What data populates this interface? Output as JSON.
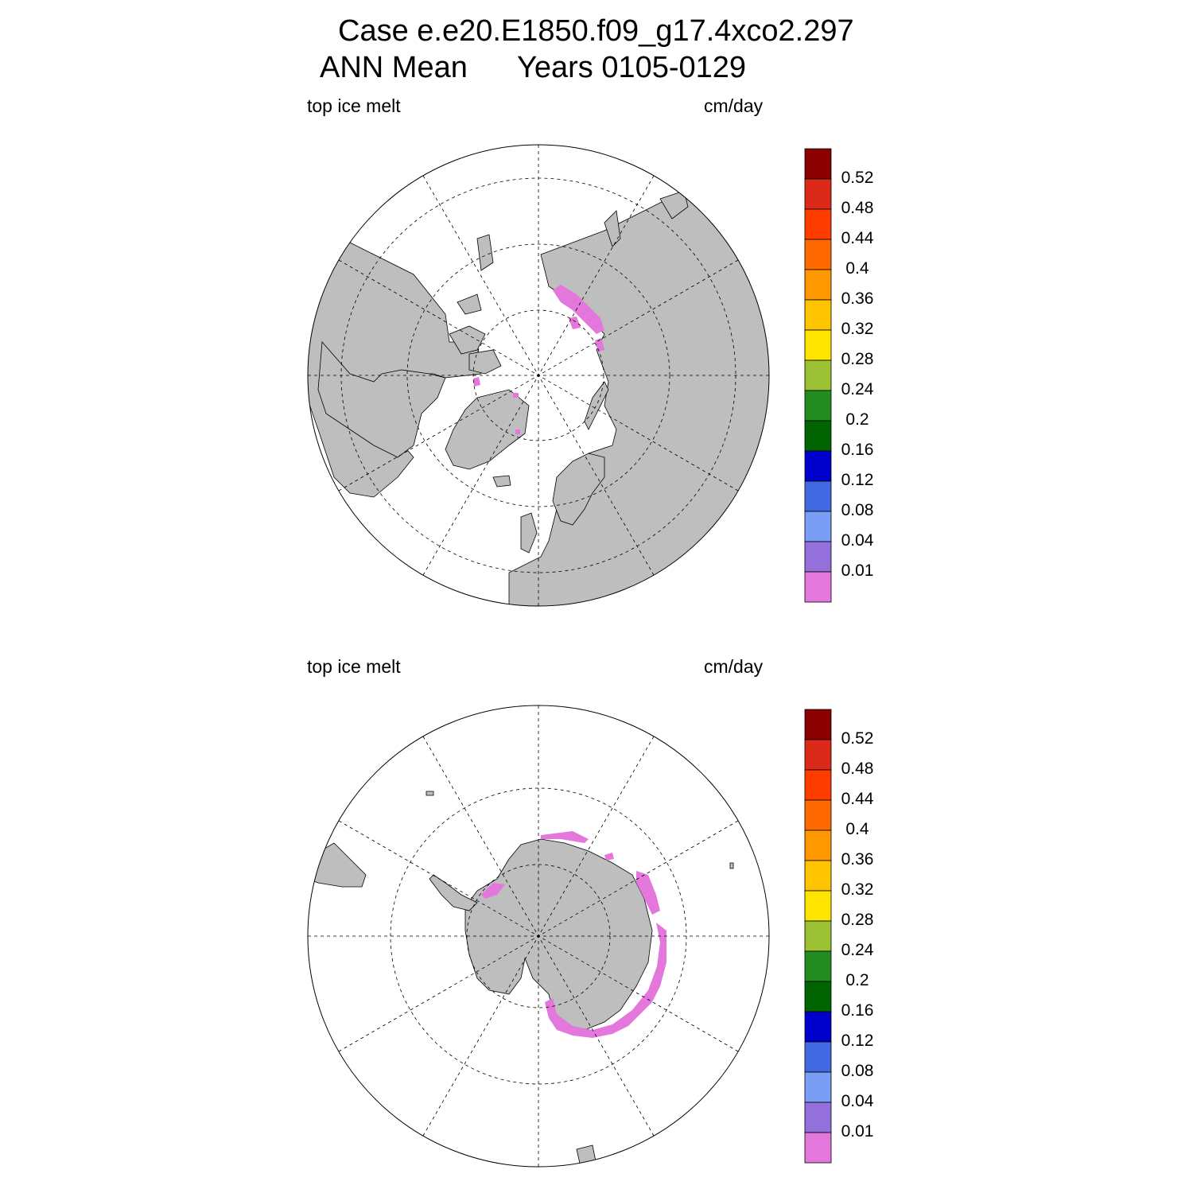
{
  "header": {
    "line1": "Case e.e20.E1850.f09_g17.4xco2.297",
    "line2_left": "ANN Mean",
    "line2_right": "Years 0105-0129"
  },
  "colors": {
    "land": "#bebebe",
    "melt": "#e377dc",
    "grid": "#000000"
  },
  "panels": [
    {
      "id": "north",
      "left_label": "top ice melt",
      "right_label": "cm/day"
    },
    {
      "id": "south",
      "left_label": "top ice melt",
      "right_label": "cm/day"
    }
  ],
  "colorbar": {
    "colors": [
      "#8b0000",
      "#dc2a1a",
      "#ff3d00",
      "#ff6a00",
      "#ff9700",
      "#ffc400",
      "#ffe400",
      "#9bc034",
      "#228b22",
      "#006400",
      "#0000cd",
      "#4169e1",
      "#7a9df5",
      "#9370db",
      "#e377dc"
    ],
    "labels": [
      "0.52",
      "0.48",
      "0.44",
      "0.4",
      "0.36",
      "0.32",
      "0.28",
      "0.24",
      "0.2",
      "0.16",
      "0.12",
      "0.08",
      "0.04",
      "0.01"
    ]
  }
}
